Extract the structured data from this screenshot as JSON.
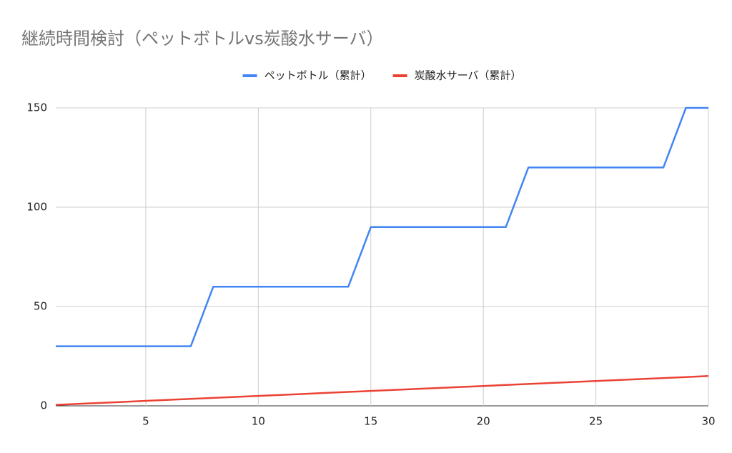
{
  "chart_data": {
    "type": "line",
    "title": "継続時間検討（ペットボトルvs炭酸水サーバ）",
    "x": [
      1,
      2,
      3,
      4,
      5,
      6,
      7,
      8,
      9,
      10,
      11,
      12,
      13,
      14,
      15,
      16,
      17,
      18,
      19,
      20,
      21,
      22,
      23,
      24,
      25,
      26,
      27,
      28,
      29,
      30
    ],
    "series": [
      {
        "name": "ペットボトル（累計）",
        "color": "#4285f4",
        "values": [
          30,
          30,
          30,
          30,
          30,
          30,
          30,
          60,
          60,
          60,
          60,
          60,
          60,
          60,
          90,
          90,
          90,
          90,
          90,
          90,
          90,
          120,
          120,
          120,
          120,
          120,
          120,
          120,
          150,
          150
        ]
      },
      {
        "name": "炭酸水サーバ（累計）",
        "color": "#ea4335",
        "values": [
          0.5,
          1,
          1.5,
          2,
          2.5,
          3,
          3.5,
          4,
          4.5,
          5,
          5.5,
          6,
          6.5,
          7,
          7.5,
          8,
          8.5,
          9,
          9.5,
          10,
          10.5,
          11,
          11.5,
          12,
          12.5,
          13,
          13.5,
          14,
          14.5,
          15
        ]
      }
    ],
    "xlim": [
      1,
      30
    ],
    "xticks": [
      5,
      10,
      15,
      20,
      25,
      30
    ],
    "ylim": [
      0,
      150
    ],
    "yticks": [
      0,
      50,
      100,
      150
    ],
    "grid": true,
    "legend": "top"
  }
}
